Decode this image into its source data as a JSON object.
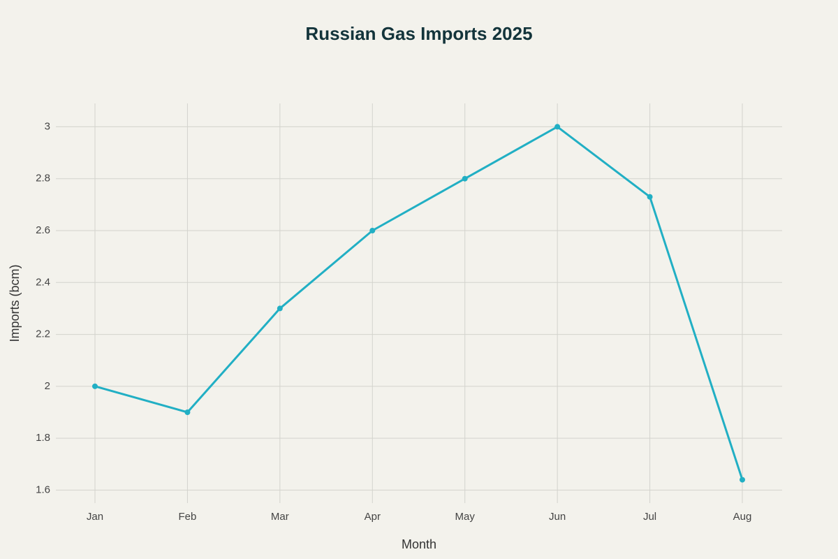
{
  "chart_data": {
    "type": "line",
    "title": "Russian Gas Imports 2025",
    "x_label": "Month",
    "y_label": "Imports (bcm)",
    "categories": [
      "Jan",
      "Feb",
      "Mar",
      "Apr",
      "May",
      "Jun",
      "Jul",
      "Aug"
    ],
    "values": [
      2,
      1.9,
      2.3,
      2.6,
      2.8,
      3,
      2.73,
      1.64
    ],
    "color": "#21afc4",
    "ylim": [
      1.55,
      3.09
    ],
    "yticks": [
      1.6,
      1.8,
      2,
      2.2,
      2.4,
      2.6,
      2.8,
      3
    ],
    "grid": true
  }
}
